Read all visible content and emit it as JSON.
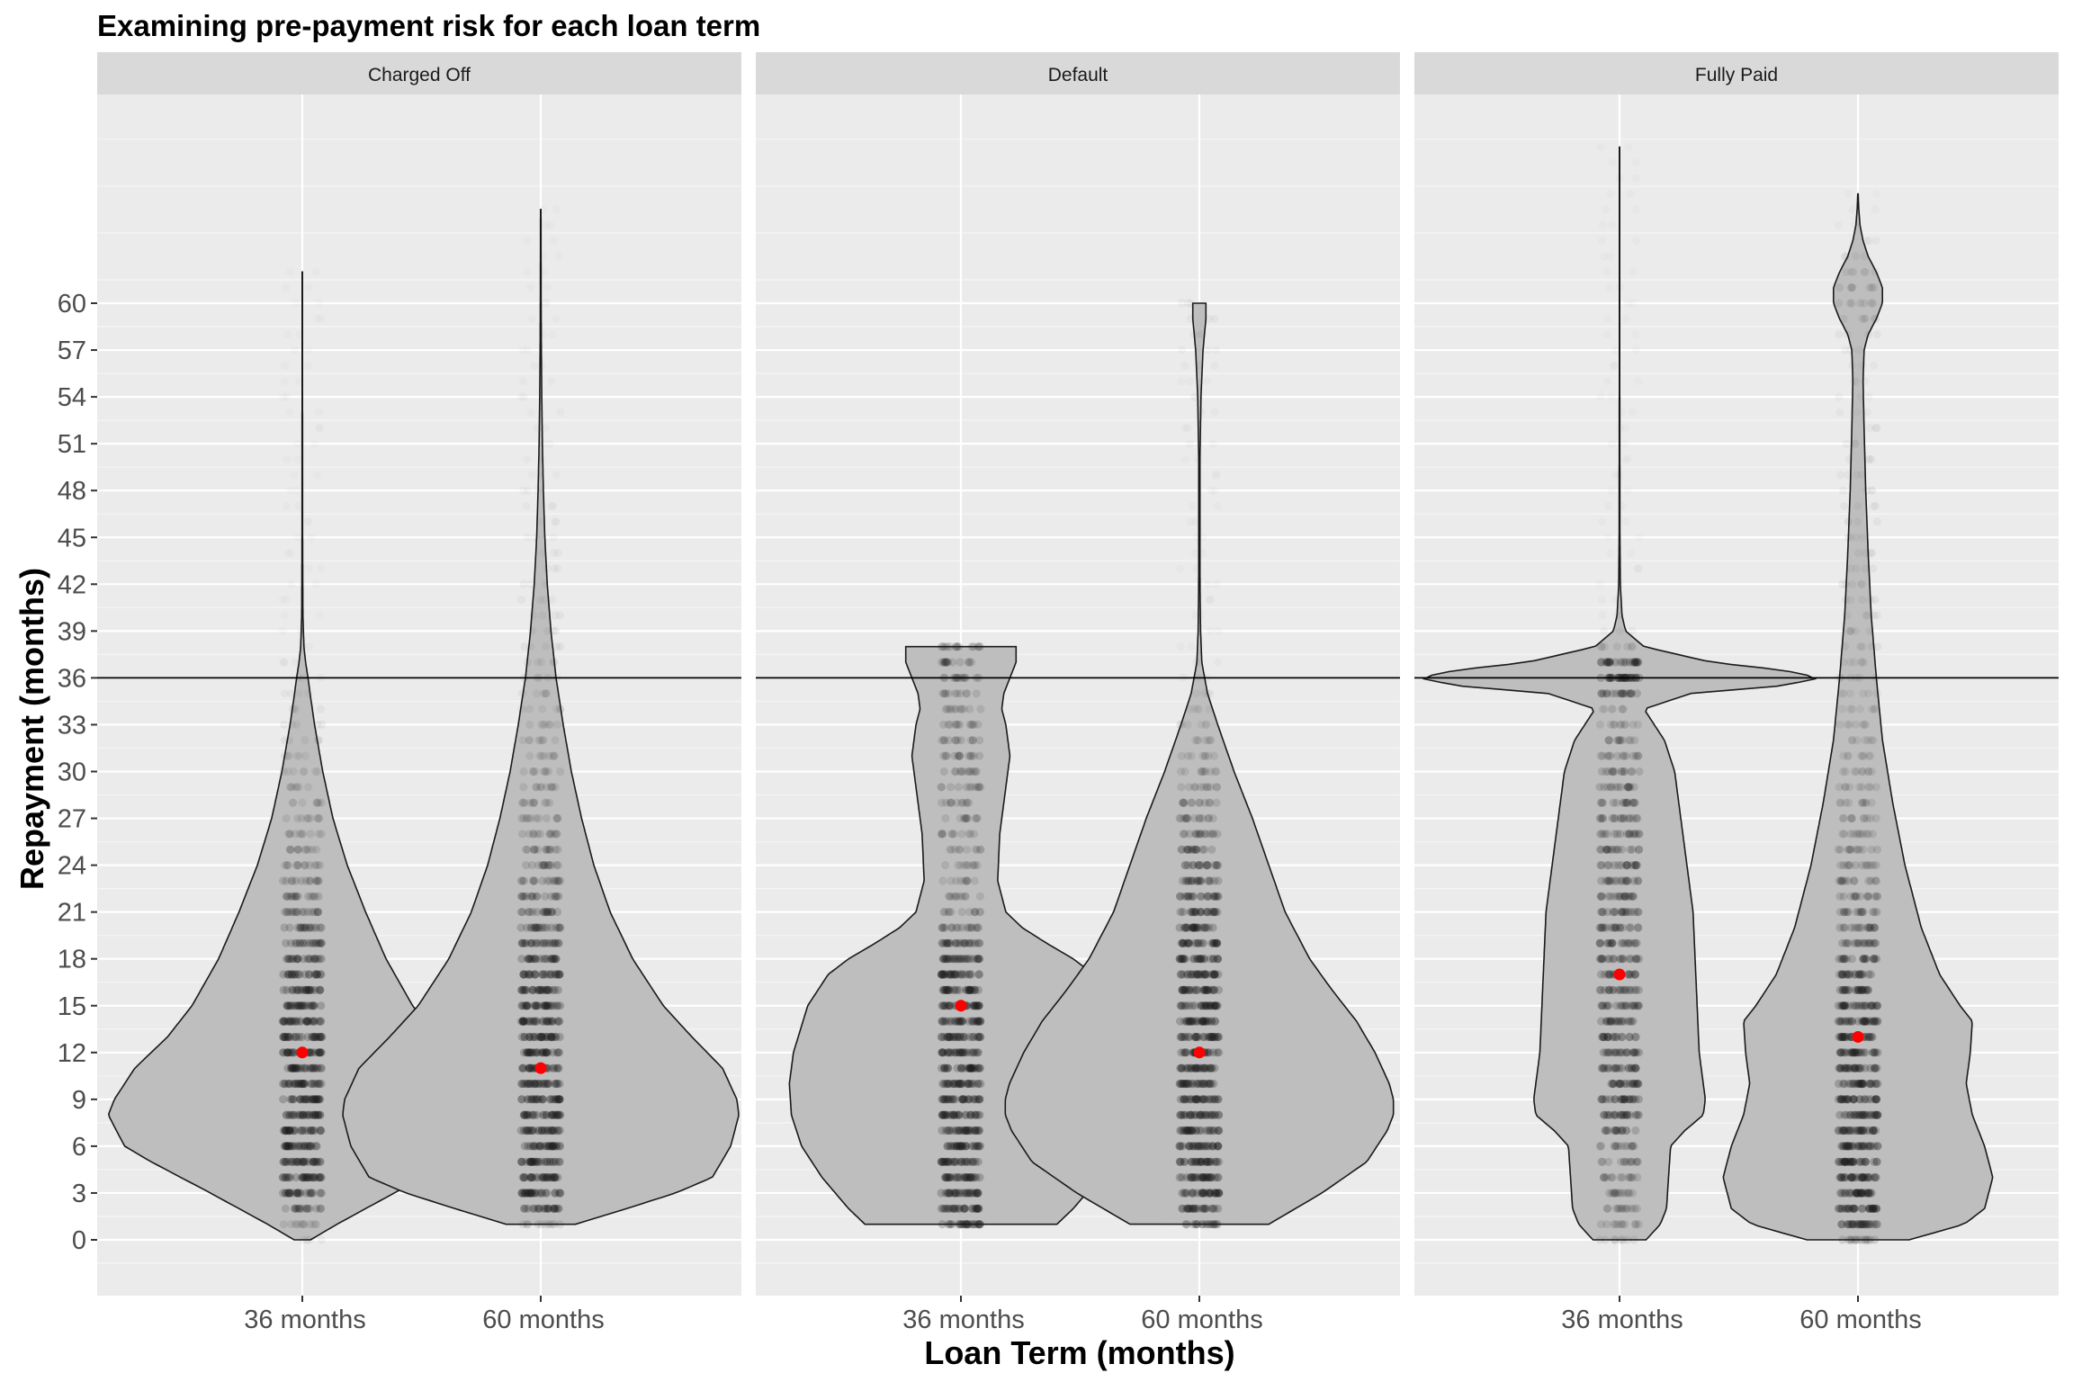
{
  "chart_data": {
    "type": "violin",
    "title": "Examining pre-payment risk for each loan term",
    "xlabel": "Loan Term (months)",
    "ylabel": "Repayment (months)",
    "categories": [
      "36 months",
      "60 months"
    ],
    "y_ticks": [
      0,
      3,
      6,
      9,
      12,
      15,
      18,
      21,
      24,
      27,
      30,
      33,
      36,
      39,
      42,
      45,
      48,
      51,
      54,
      57,
      60
    ],
    "ylim": [
      -3.5,
      73
    ],
    "reference_line_y": 36,
    "facets": [
      {
        "name": "Charged Off",
        "groups": [
          {
            "category": "36 months",
            "min": 0,
            "max": 62,
            "median": 12,
            "density": [
              [
                0,
                0.04
              ],
              [
                1,
                0.17
              ],
              [
                3,
                0.45
              ],
              [
                5,
                0.74
              ],
              [
                6,
                0.87
              ],
              [
                8,
                0.95
              ],
              [
                9,
                0.92
              ],
              [
                11,
                0.82
              ],
              [
                13,
                0.66
              ],
              [
                15,
                0.54
              ],
              [
                18,
                0.41
              ],
              [
                21,
                0.31
              ],
              [
                24,
                0.22
              ],
              [
                27,
                0.15
              ],
              [
                30,
                0.1
              ],
              [
                33,
                0.06
              ],
              [
                35,
                0.038
              ],
              [
                36,
                0.028
              ],
              [
                37,
                0.016
              ],
              [
                38,
                0.008
              ],
              [
                40,
                0.003
              ],
              [
                45,
                0.0015
              ],
              [
                55,
                0.001
              ],
              [
                62,
                0.001
              ]
            ]
          },
          {
            "category": "60 months",
            "min": 1,
            "max": 66,
            "median": 11,
            "density": [
              [
                1,
                0.17
              ],
              [
                2,
                0.42
              ],
              [
                3,
                0.66
              ],
              [
                4,
                0.84
              ],
              [
                6,
                0.93
              ],
              [
                8,
                0.97
              ],
              [
                9,
                0.96
              ],
              [
                11,
                0.89
              ],
              [
                13,
                0.74
              ],
              [
                15,
                0.6
              ],
              [
                18,
                0.45
              ],
              [
                21,
                0.34
              ],
              [
                24,
                0.26
              ],
              [
                27,
                0.2
              ],
              [
                30,
                0.15
              ],
              [
                33,
                0.11
              ],
              [
                36,
                0.075
              ],
              [
                39,
                0.05
              ],
              [
                42,
                0.032
              ],
              [
                45,
                0.02
              ],
              [
                48,
                0.013
              ],
              [
                51,
                0.008
              ],
              [
                54,
                0.005
              ],
              [
                57,
                0.003
              ],
              [
                60,
                0.002
              ],
              [
                66,
                0.001
              ]
            ]
          }
        ]
      },
      {
        "name": "Default",
        "groups": [
          {
            "category": "36 months",
            "min": 1,
            "max": 38,
            "median": 15,
            "density": [
              [
                1,
                0.47
              ],
              [
                2,
                0.55
              ],
              [
                4,
                0.68
              ],
              [
                6,
                0.78
              ],
              [
                8,
                0.83
              ],
              [
                10,
                0.84
              ],
              [
                12,
                0.82
              ],
              [
                15,
                0.75
              ],
              [
                17,
                0.65
              ],
              [
                18,
                0.55
              ],
              [
                19,
                0.42
              ],
              [
                20,
                0.3
              ],
              [
                21,
                0.22
              ],
              [
                23,
                0.18
              ],
              [
                26,
                0.19
              ],
              [
                29,
                0.22
              ],
              [
                31,
                0.24
              ],
              [
                33,
                0.22
              ],
              [
                34,
                0.2
              ],
              [
                35,
                0.21
              ],
              [
                36,
                0.24
              ],
              [
                37,
                0.27
              ],
              [
                38,
                0.27
              ]
            ]
          },
          {
            "category": "60 months",
            "min": 1,
            "max": 60,
            "median": 12,
            "density": [
              [
                1,
                0.34
              ],
              [
                3,
                0.6
              ],
              [
                5,
                0.82
              ],
              [
                7,
                0.92
              ],
              [
                8,
                0.95
              ],
              [
                9,
                0.95
              ],
              [
                10,
                0.93
              ],
              [
                12,
                0.86
              ],
              [
                14,
                0.77
              ],
              [
                16,
                0.65
              ],
              [
                18,
                0.54
              ],
              [
                21,
                0.42
              ],
              [
                24,
                0.34
              ],
              [
                27,
                0.26
              ],
              [
                30,
                0.17
              ],
              [
                33,
                0.09
              ],
              [
                35,
                0.04
              ],
              [
                37,
                0.012
              ],
              [
                39,
                0.006
              ],
              [
                41,
                0.004
              ],
              [
                43,
                0.003
              ],
              [
                50,
                0.003
              ],
              [
                54,
                0.008
              ],
              [
                57,
                0.018
              ],
              [
                59,
                0.032
              ],
              [
                60,
                0.032
              ]
            ]
          }
        ]
      },
      {
        "name": "Fully Paid",
        "groups": [
          {
            "category": "36 months",
            "min": 0,
            "max": 70,
            "median": 17,
            "density": [
              [
                0,
                0.13
              ],
              [
                1,
                0.2
              ],
              [
                2,
                0.23
              ],
              [
                4,
                0.24
              ],
              [
                6,
                0.25
              ],
              [
                7,
                0.32
              ],
              [
                8,
                0.41
              ],
              [
                9,
                0.42
              ],
              [
                10,
                0.41
              ],
              [
                12,
                0.39
              ],
              [
                15,
                0.38
              ],
              [
                18,
                0.37
              ],
              [
                21,
                0.36
              ],
              [
                24,
                0.33
              ],
              [
                27,
                0.3
              ],
              [
                30,
                0.27
              ],
              [
                32,
                0.22
              ],
              [
                33,
                0.17
              ],
              [
                34,
                0.12
              ],
              [
                35,
                0.35
              ],
              [
                35.5,
                0.8
              ],
              [
                36,
                0.98
              ],
              [
                36.5,
                0.8
              ],
              [
                37,
                0.45
              ],
              [
                38,
                0.12
              ],
              [
                39,
                0.03
              ],
              [
                40,
                0.012
              ],
              [
                42,
                0.004
              ],
              [
                45,
                0.002
              ],
              [
                55,
                0.001
              ],
              [
                70,
                0.001
              ]
            ]
          },
          {
            "category": "60 months",
            "min": 0,
            "max": 67,
            "median": 13,
            "density": [
              [
                0,
                0.25
              ],
              [
                1,
                0.52
              ],
              [
                2,
                0.62
              ],
              [
                4,
                0.66
              ],
              [
                6,
                0.62
              ],
              [
                8,
                0.56
              ],
              [
                10,
                0.53
              ],
              [
                12,
                0.55
              ],
              [
                14,
                0.56
              ],
              [
                15,
                0.5
              ],
              [
                17,
                0.4
              ],
              [
                20,
                0.31
              ],
              [
                24,
                0.23
              ],
              [
                28,
                0.17
              ],
              [
                32,
                0.12
              ],
              [
                36,
                0.09
              ],
              [
                40,
                0.065
              ],
              [
                44,
                0.05
              ],
              [
                48,
                0.038
              ],
              [
                52,
                0.03
              ],
              [
                55,
                0.025
              ],
              [
                57,
                0.03
              ],
              [
                58,
                0.05
              ],
              [
                59,
                0.09
              ],
              [
                60,
                0.12
              ],
              [
                61,
                0.12
              ],
              [
                62,
                0.09
              ],
              [
                63,
                0.05
              ],
              [
                64,
                0.025
              ],
              [
                65,
                0.01
              ],
              [
                66,
                0.004
              ],
              [
                67,
                0.001
              ]
            ]
          }
        ]
      }
    ]
  }
}
